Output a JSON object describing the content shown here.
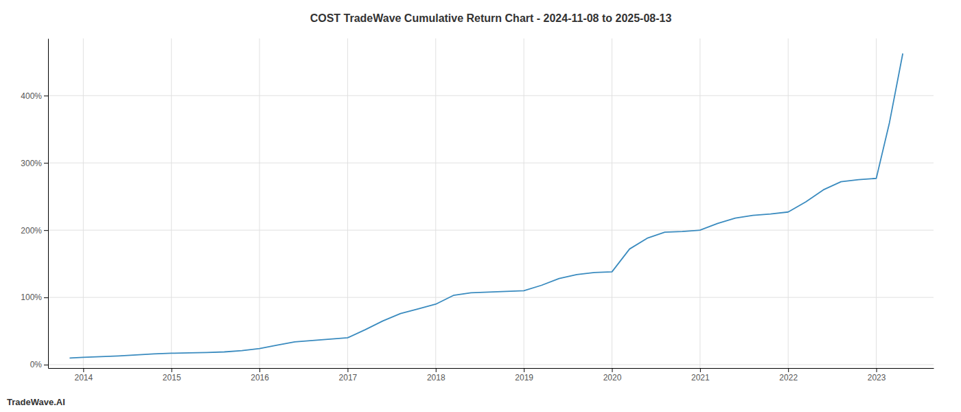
{
  "chart_data": {
    "type": "line",
    "title": "COST TradeWave Cumulative Return Chart - 2024-11-08 to 2025-08-13",
    "annotations": [
      "TradeWave.AI"
    ],
    "color": "#3a8bbf",
    "grid": true,
    "xlim": [
      2013.6,
      2023.65
    ],
    "ylim": [
      -0.05,
      4.85
    ],
    "xticks": [
      2014,
      2015,
      2016,
      2017,
      2018,
      2019,
      2020,
      2021,
      2022,
      2023
    ],
    "yticks": [
      {
        "value": 0.0,
        "label": "0%"
      },
      {
        "value": 1.0,
        "label": "100%"
      },
      {
        "value": 2.0,
        "label": "200%"
      },
      {
        "value": 3.0,
        "label": "300%"
      },
      {
        "value": 4.0,
        "label": "400%"
      }
    ],
    "x": [
      2013.85,
      2014.0,
      2014.2,
      2014.4,
      2014.6,
      2014.8,
      2015.0,
      2015.2,
      2015.4,
      2015.6,
      2015.8,
      2016.0,
      2016.2,
      2016.4,
      2016.6,
      2016.8,
      2017.0,
      2017.2,
      2017.4,
      2017.6,
      2017.8,
      2018.0,
      2018.2,
      2018.4,
      2018.6,
      2018.8,
      2019.0,
      2019.2,
      2019.4,
      2019.6,
      2019.8,
      2020.0,
      2020.2,
      2020.4,
      2020.6,
      2020.8,
      2021.0,
      2021.2,
      2021.4,
      2021.6,
      2021.8,
      2022.0,
      2022.2,
      2022.4,
      2022.6,
      2022.8,
      2023.0,
      2023.15,
      2023.3
    ],
    "values": [
      0.1,
      0.11,
      0.12,
      0.13,
      0.145,
      0.16,
      0.17,
      0.175,
      0.18,
      0.19,
      0.21,
      0.24,
      0.29,
      0.34,
      0.36,
      0.38,
      0.4,
      0.52,
      0.65,
      0.76,
      0.83,
      0.9,
      1.03,
      1.07,
      1.08,
      1.09,
      1.1,
      1.18,
      1.28,
      1.34,
      1.37,
      1.38,
      1.72,
      1.88,
      1.97,
      1.98,
      2.0,
      2.1,
      2.18,
      2.22,
      2.24,
      2.27,
      2.42,
      2.6,
      2.72,
      2.75,
      2.77,
      3.6,
      4.62
    ]
  }
}
